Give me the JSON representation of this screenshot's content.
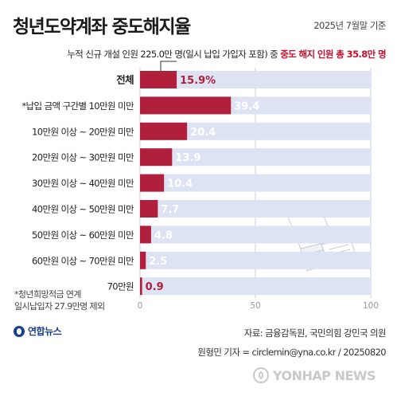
{
  "header": {
    "title": "청년도약계좌 중도해지율",
    "date": "2025년 7월말 기준",
    "subtitle_prefix": "누적 신규 개설 인원 225.0만 명(일시 납입 가입자 포함) 중 ",
    "subtitle_highlight": "중도 해지 인원 총 35.8만 명"
  },
  "chart_data": {
    "type": "bar",
    "orientation": "horizontal",
    "unit": "%",
    "categories": [
      "전체",
      "*납입 금액 구간별  10만원 미만",
      "10만원 이상 ~ 20만원 미만",
      "20만원 이상 ~ 30만원 미만",
      "30만원 이상 ~ 40만원 미만",
      "40만원 이상 ~ 50만원 미만",
      "50만원 이상 ~ 60만원 미만",
      "60만원 이상 ~ 70만원 미만",
      "70만원"
    ],
    "values": [
      15.9,
      39.4,
      20.4,
      13.9,
      10.4,
      7.7,
      4.8,
      2.5,
      0.9
    ],
    "labels": [
      "15.9%",
      "39.4",
      "20.4",
      "13.9",
      "10.4",
      "7.7",
      "4.8",
      "2.5",
      "0.9"
    ],
    "xlim": [
      0,
      100
    ],
    "xticks": [
      0,
      50,
      100
    ],
    "bar_color": "#b01f3c",
    "track_color": "#dde3f2",
    "label_color": "#ffffff"
  },
  "notes": {
    "line1": "*청년희망적금 연계",
    "line2": "일시납입자 27.9만명 제외"
  },
  "footer": {
    "logo_text": "연합뉴스",
    "source": "자료: 금융감독원, 국민의힘 강민국 의원",
    "credit": "원형민 기자 = circlemin@yna.co.kr / 20250820",
    "watermark": "YONHAP NEWS"
  }
}
